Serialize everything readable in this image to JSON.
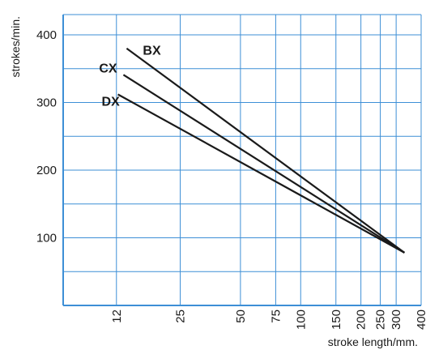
{
  "chart_data": {
    "type": "line",
    "xlabel": "stroke length/mm.",
    "ylabel": "strokes/min.",
    "x_scale": "log",
    "xlim": [
      6.5,
      400
    ],
    "ylim": [
      0,
      430
    ],
    "x_ticks": [
      12,
      25,
      50,
      75,
      100,
      150,
      200,
      250,
      300,
      400
    ],
    "y_ticks": [
      100,
      200,
      300,
      400
    ],
    "grid": true,
    "colors": {
      "grid": "#3d8fd6",
      "axis": "#3d8fd6",
      "series": "#1a1a1a"
    },
    "series": [
      {
        "name": "BX",
        "x": [
          13.5,
          330
        ],
        "y": [
          380,
          78
        ]
      },
      {
        "name": "CX",
        "x": [
          13,
          330
        ],
        "y": [
          341,
          78
        ]
      },
      {
        "name": "DX",
        "x": [
          12.2,
          330
        ],
        "y": [
          312,
          78
        ]
      }
    ]
  }
}
